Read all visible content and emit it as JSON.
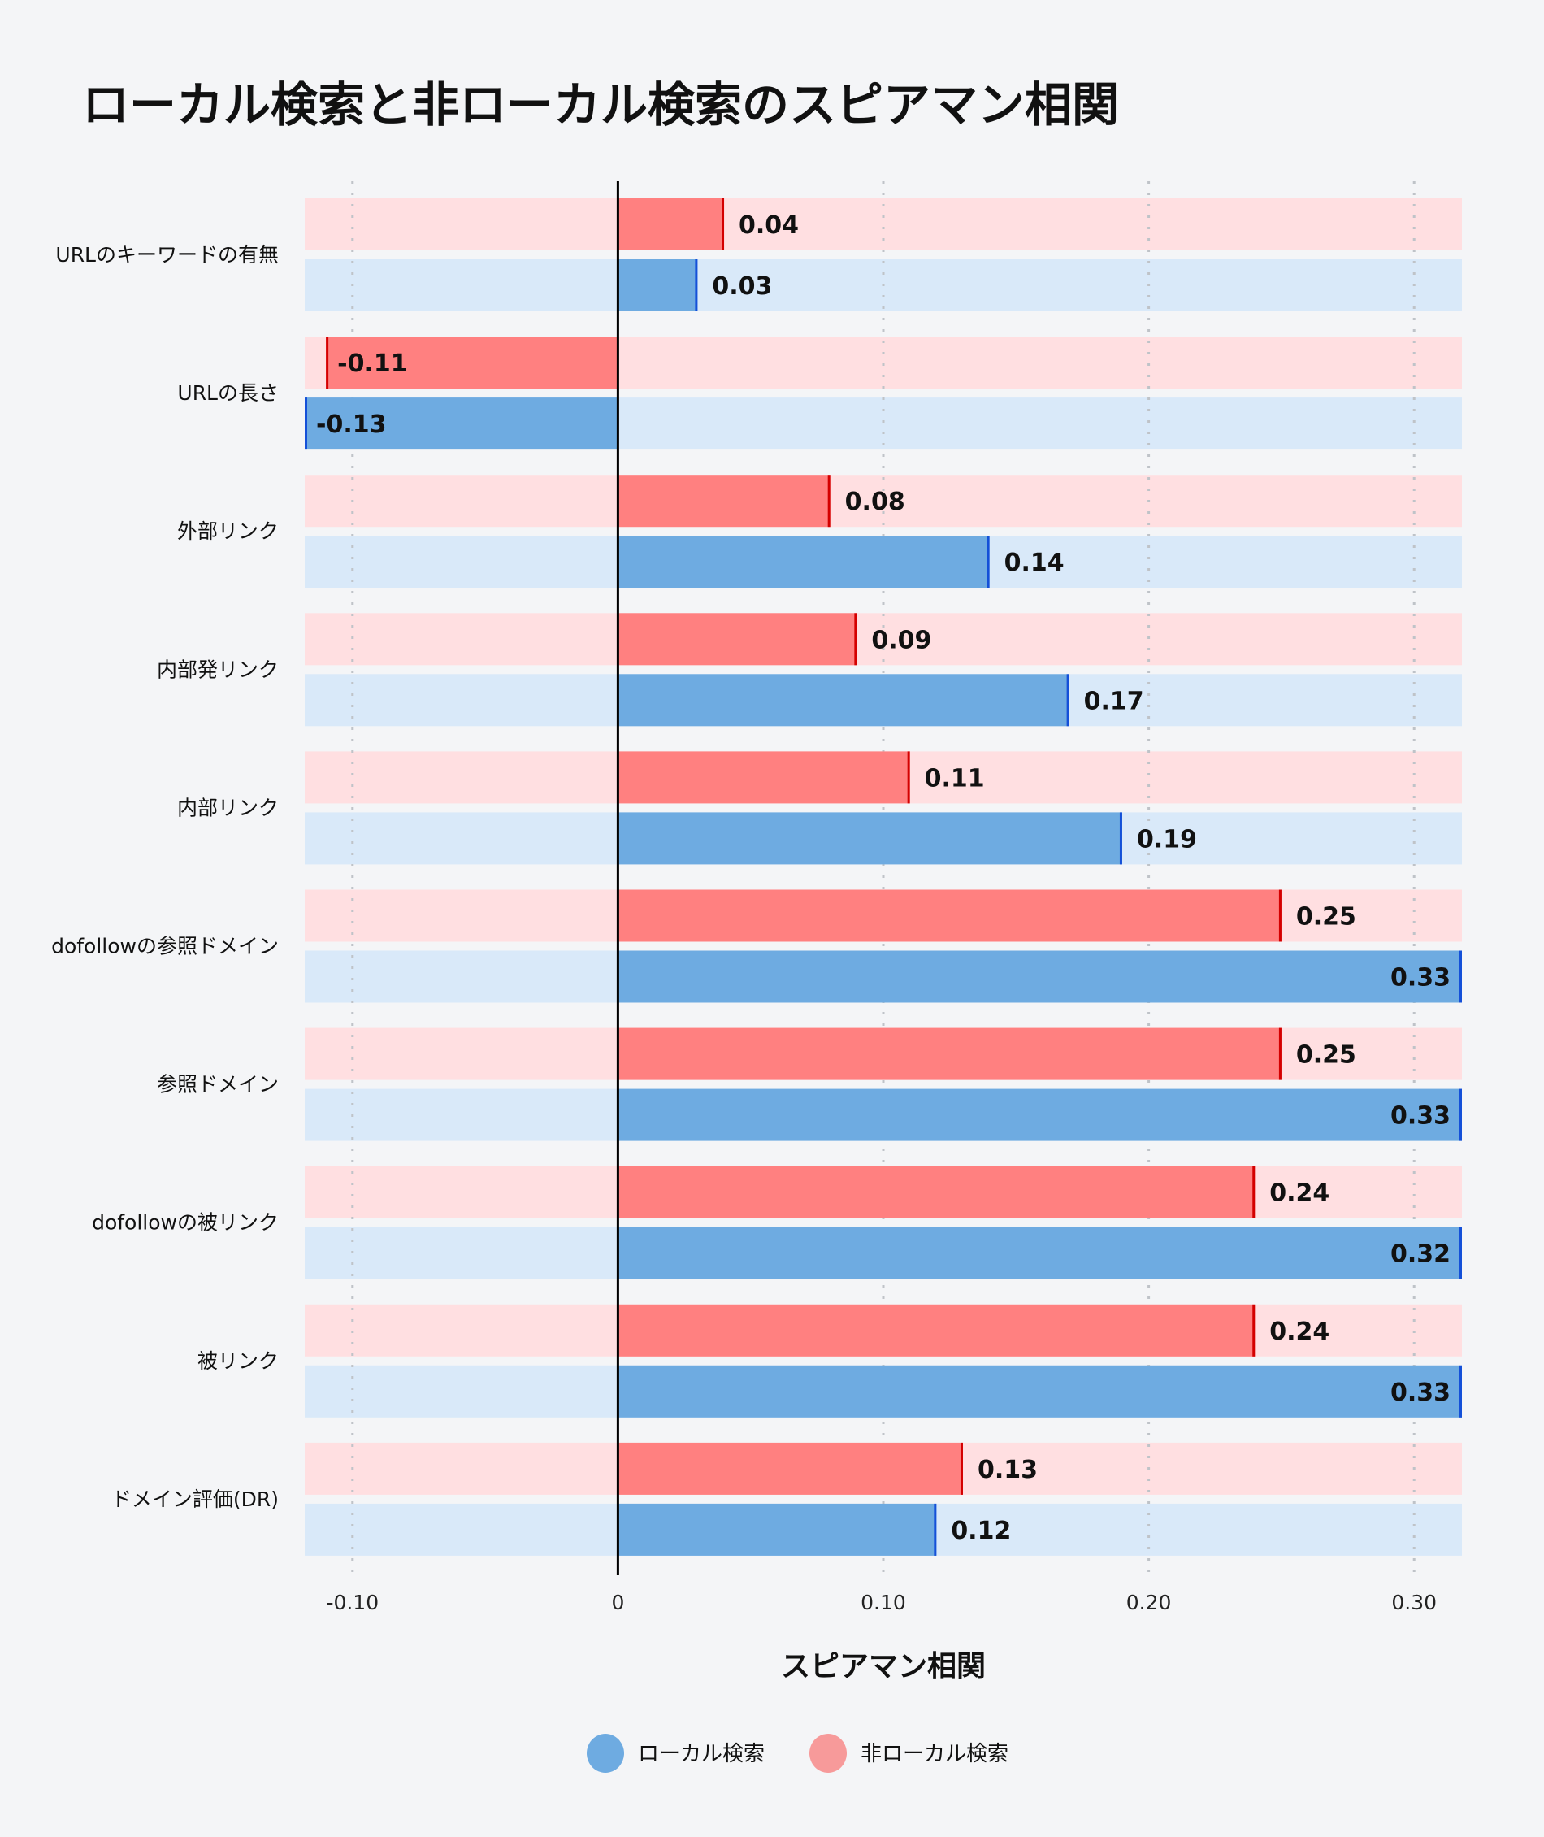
{
  "chart_data": {
    "type": "bar",
    "orientation": "horizontal",
    "title": "ローカル検索と非ローカル検索のスピアマン相関",
    "xlabel": "スピアマン相関",
    "ylabel": "",
    "xlim": [
      -0.118,
      0.318
    ],
    "xticks": [
      -0.1,
      0,
      0.1,
      0.2,
      0.3
    ],
    "xtick_labels": [
      "-0.10",
      "0",
      "0.10",
      "0.20",
      "0.30"
    ],
    "grid": "vertical dotted",
    "legend_position": "bottom",
    "categories": [
      "URLのキーワードの有無",
      "URLの長さ",
      "外部リンク",
      "内部発リンク",
      "内部リンク",
      "dofollowの参照ドメイン",
      "参照ドメイン",
      "dofollowの被リンク",
      "被リンク",
      "ドメイン評価(DR)"
    ],
    "series": [
      {
        "name": "非ローカル検索",
        "color": "#ff8080",
        "track_color": "#ffdfe1",
        "edge_color": "#d40000",
        "legend_color": "#f79a9a",
        "values": [
          0.04,
          -0.11,
          0.08,
          0.09,
          0.11,
          0.25,
          0.25,
          0.24,
          0.24,
          0.13
        ]
      },
      {
        "name": "ローカル検索",
        "color": "#6eabe1",
        "track_color": "#d9e9f9",
        "edge_color": "#1450d8",
        "legend_color": "#6eabe1",
        "values": [
          0.03,
          -0.13,
          0.14,
          0.17,
          0.19,
          0.33,
          0.33,
          0.32,
          0.33,
          0.12
        ]
      }
    ],
    "legend_order": [
      "ローカル検索",
      "非ローカル検索"
    ]
  }
}
